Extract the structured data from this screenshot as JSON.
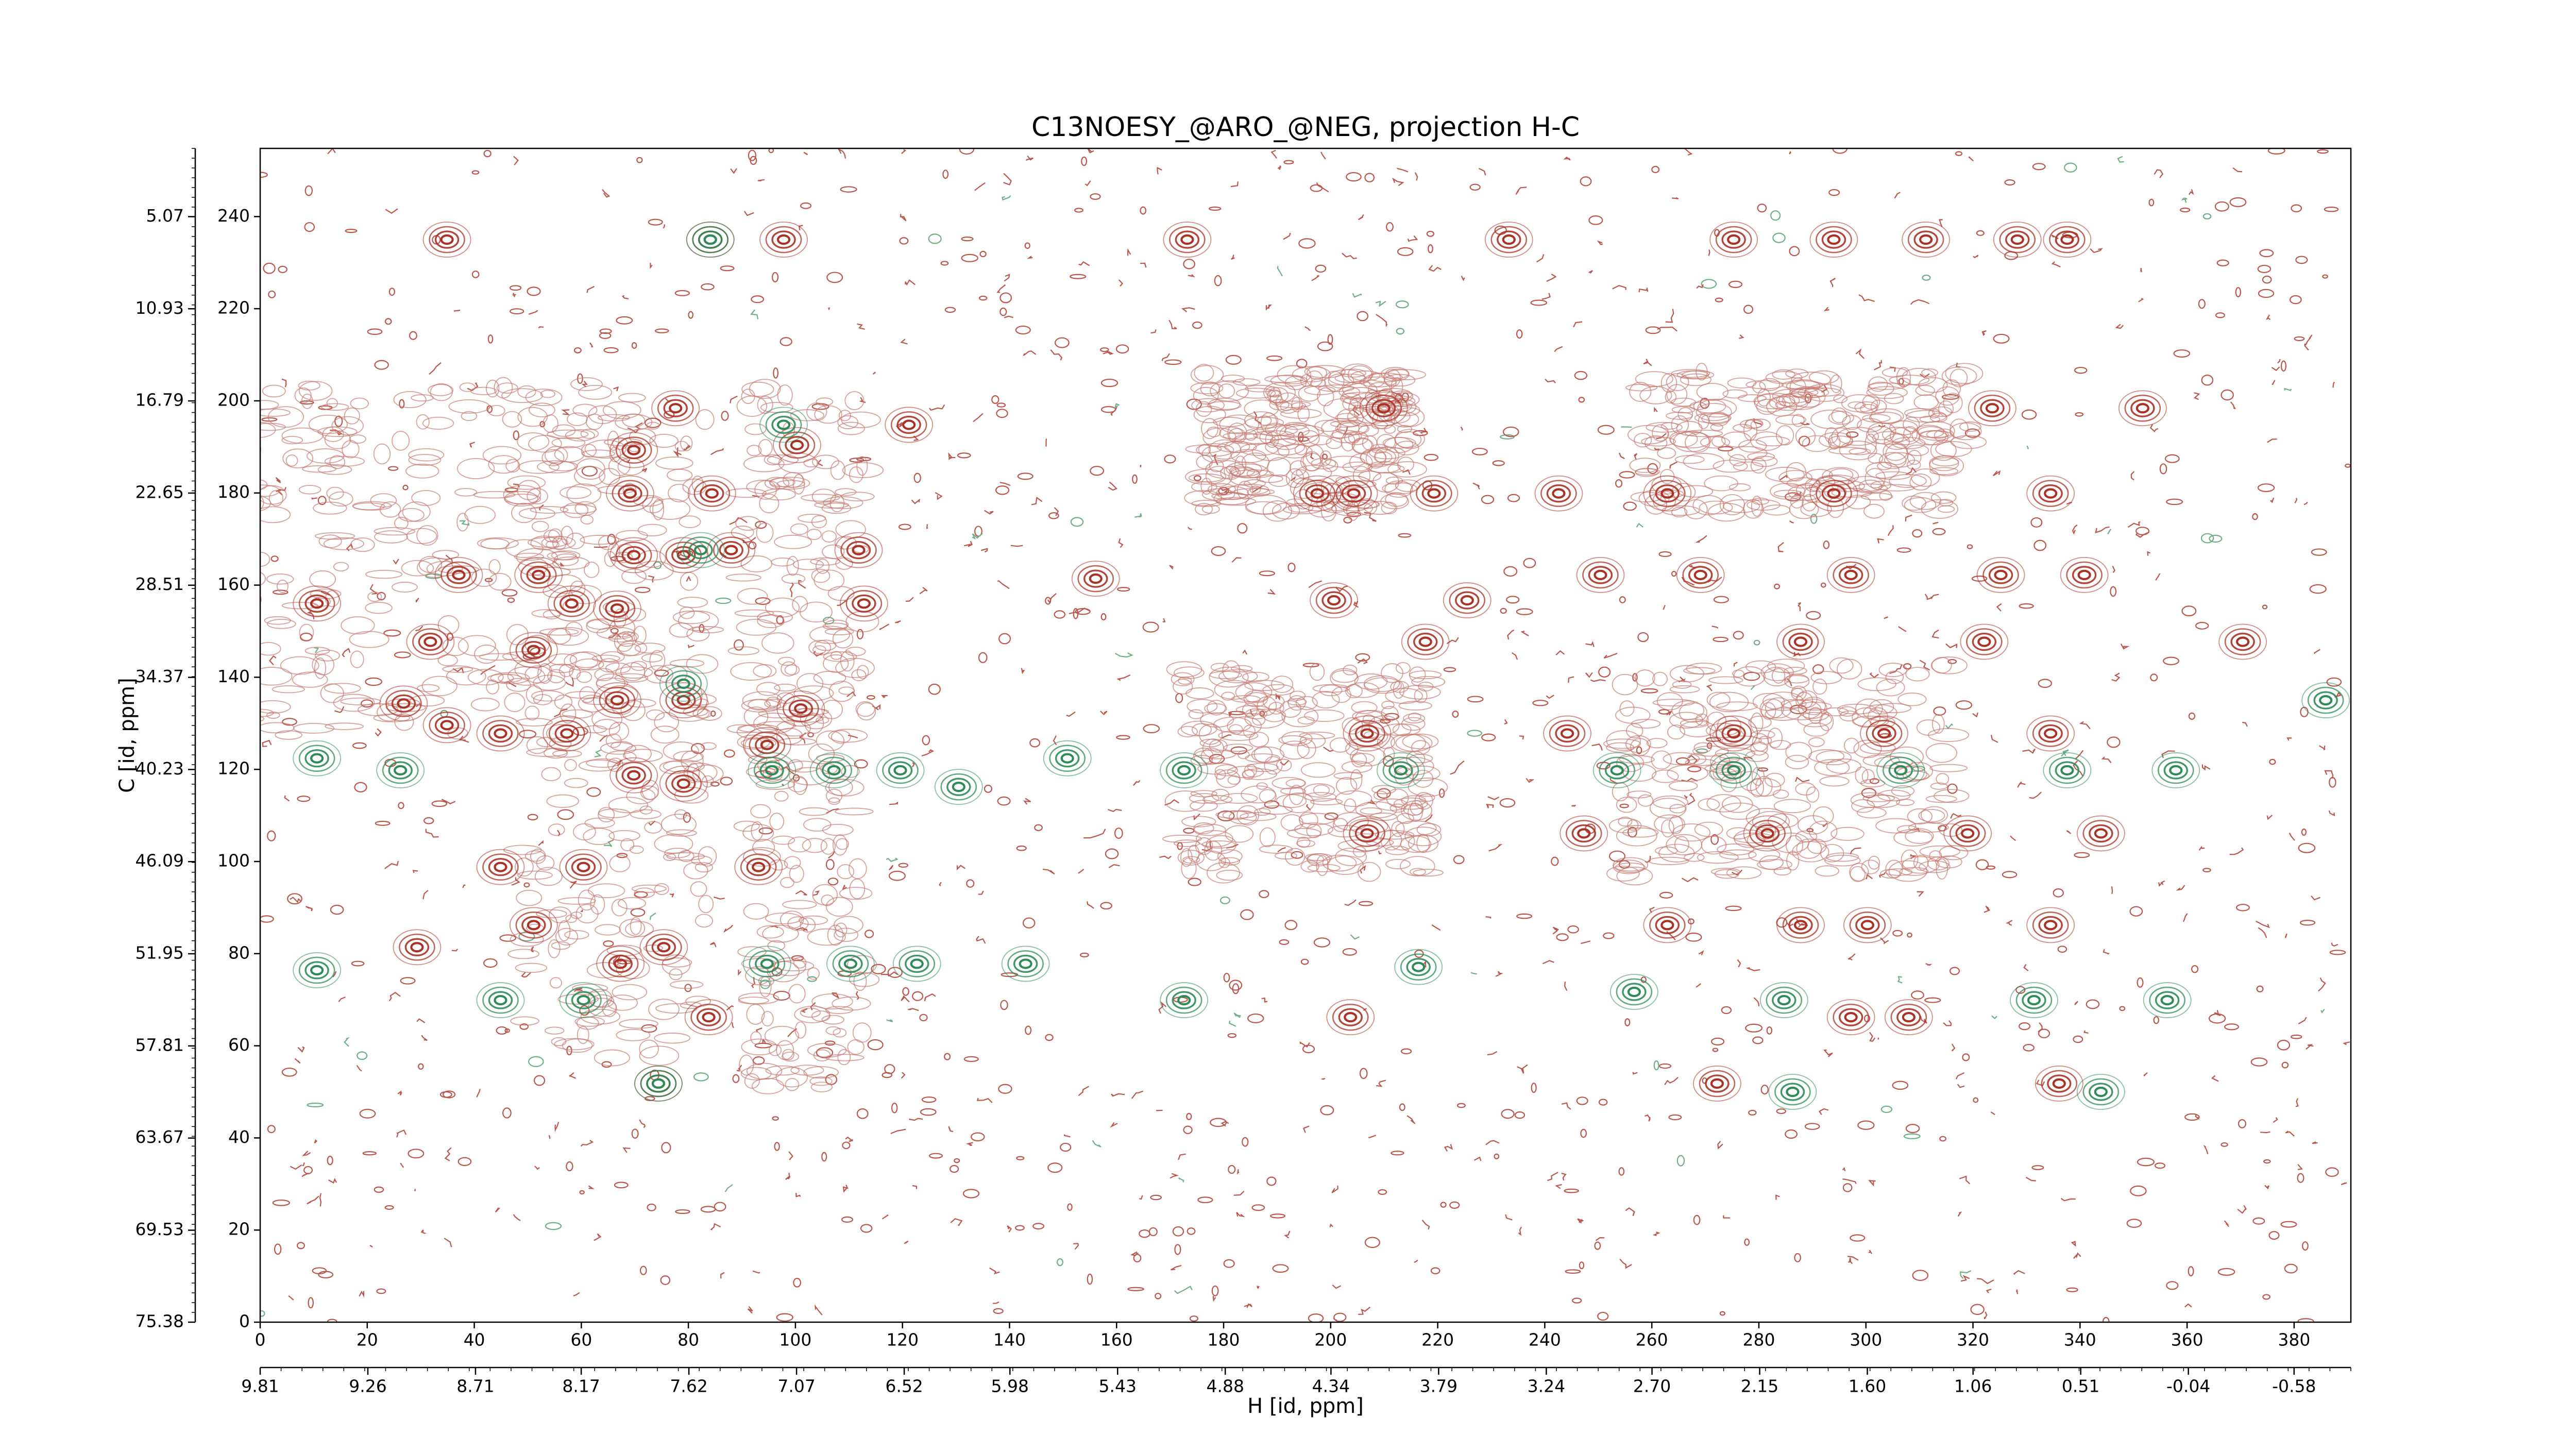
{
  "chart_data": {
    "type": "contour",
    "title": "C13NOESY_@ARO_@NEG, projection H-C",
    "xlabel": "H [id, ppm]",
    "ylabel": "C [id, ppm]",
    "xlim": [
      0,
      390.6
    ],
    "xticks": [
      0,
      20,
      40,
      60,
      80,
      100,
      120,
      140,
      160,
      180,
      200,
      220,
      240,
      260,
      280,
      300,
      320,
      340,
      360,
      380
    ],
    "ylim": [
      0,
      254.8
    ],
    "yticks": [
      0,
      20,
      40,
      60,
      80,
      100,
      120,
      140,
      160,
      180,
      200,
      220,
      240
    ],
    "x2lim": [
      9.81,
      -0.87
    ],
    "x2ticks": [
      9.81,
      9.26,
      8.71,
      8.17,
      7.62,
      7.07,
      6.52,
      5.98,
      5.43,
      4.88,
      4.34,
      3.79,
      3.24,
      {
        "value": 2.7,
        "label": "2.70"
      },
      2.15,
      {
        "value": 1.6,
        "label": "1.60"
      },
      1.06,
      0.51,
      -0.04,
      -0.58
    ],
    "y2lim": [
      75.38,
      0.73
    ],
    "y2ticks": [
      75.38,
      69.53,
      63.67,
      57.81,
      51.95,
      46.09,
      40.23,
      34.37,
      28.51,
      22.65,
      16.79,
      10.93,
      5.07
    ],
    "series": [
      {
        "color": "#a83226",
        "x": [
          34.9,
          84.1,
          97.8,
          173.2,
          233.3,
          275.3,
          294,
          311.2,
          328.3,
          337.6,
          69.8,
          77.6,
          100.3,
          121.2,
          209.9,
          323.6,
          351.7,
          69.1,
          84.4,
          197.5,
          204.3,
          219.3,
          242.6,
          262.9,
          294,
          334.5,
          69.8,
          79.1,
          88,
          111.8,
          37.1,
          52,
          66.7,
          10.6,
          58.2,
          112.8,
          156.1,
          200.6,
          225.5,
          250.4,
          269.1,
          297.2,
          325.2,
          340.8,
          31.8,
          51.1,
          217.7,
          287.8,
          322.1,
          370.4,
          26.8,
          34.9,
          66.7,
          79.1,
          44.9,
          57.3,
          101,
          94.7,
          69.8,
          79.1,
          206.8,
          244.2,
          275.3,
          303.4,
          334.5,
          206.8,
          247.3,
          281.6,
          319,
          343.9,
          93.1,
          60.4,
          44.9,
          51.1,
          262.9,
          287.8,
          300.3,
          334.5,
          29.3,
          67.3,
          75.4,
          203.7,
          297.2,
          308,
          83.8,
          336.1,
          272.2,
          74.4
        ],
        "y": [
          235,
          235,
          235,
          235,
          235,
          235,
          235,
          235,
          235,
          235,
          189.3,
          198.4,
          190.4,
          194.8,
          198.4,
          198.4,
          198.4,
          179.9,
          179.9,
          179.9,
          179.9,
          179.9,
          179.9,
          179.9,
          179.9,
          179.9,
          166.5,
          166.5,
          167.6,
          167.6,
          162.2,
          162.2,
          154.9,
          156,
          156,
          156,
          161.4,
          156.7,
          156.7,
          162.2,
          162.2,
          162.2,
          162.2,
          162.2,
          147.7,
          145.9,
          147.7,
          147.7,
          147.7,
          147.7,
          134.3,
          129.6,
          135,
          135,
          127.8,
          127.8,
          133.2,
          125.3,
          118.7,
          116.9,
          127.8,
          127.8,
          127.8,
          127.8,
          127.8,
          106.1,
          106.1,
          106.1,
          106.1,
          106.1,
          98.8,
          98.8,
          98.8,
          86.2,
          86.2,
          86.2,
          86.2,
          86.2,
          81.4,
          77.8,
          81.4,
          66.2,
          66.2,
          66.2,
          66.2,
          51.8,
          51.8,
          51.8
        ]
      },
      {
        "color": "#2e8b57",
        "x": [
          84.1,
          97.8,
          82.3,
          79.1,
          95.6,
          107.2,
          119.6,
          130.5,
          150.8,
          172.6,
          10.6,
          26.2,
          213.1,
          253.5,
          275.3,
          306.5,
          337.6,
          357.9,
          385.9,
          94.7,
          110.3,
          122.7,
          10.6,
          44.9,
          60.4,
          143,
          172.6,
          216.4,
          256.7,
          284.7,
          331.4,
          356.3,
          74.4,
          286.3,
          343.9
        ],
        "y": [
          235,
          194.8,
          167.6,
          138.6,
          119.8,
          119.8,
          119.8,
          116.2,
          122.4,
          119.8,
          122.4,
          119.8,
          119.8,
          119.8,
          119.8,
          119.8,
          119.8,
          119.8,
          135,
          77.8,
          77.8,
          77.8,
          76.4,
          69.9,
          69.9,
          77.8,
          69.9,
          77.1,
          71.7,
          69.9,
          69.9,
          69.9,
          51.8,
          50,
          50
        ]
      }
    ]
  }
}
